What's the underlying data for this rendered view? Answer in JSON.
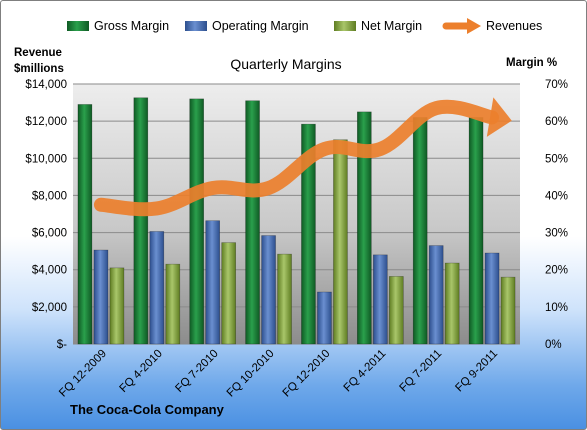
{
  "chart_data": {
    "type": "bar",
    "title": "Quarterly Margins",
    "company": "The Coca-Cola Company",
    "y_left_label_line1": "Revenue",
    "y_left_label_line2": "$millions",
    "y_right_label": "Margin %",
    "categories": [
      "FQ 12-2009",
      "FQ 4-2010",
      "FQ 7-2010",
      "FQ 10-2010",
      "FQ 12-2010",
      "FQ 4-2011",
      "FQ 7-2011",
      "FQ 9-2011"
    ],
    "y_left_ticks": [
      "$-",
      "$2,000",
      "$4,000",
      "$6,000",
      "$8,000",
      "$10,000",
      "$12,000",
      "$14,000"
    ],
    "y_right_ticks": [
      "0%",
      "10%",
      "20%",
      "30%",
      "40%",
      "50%",
      "60%",
      "70%"
    ],
    "y_left_lim": [
      0,
      14000
    ],
    "y_right_lim": [
      0,
      70
    ],
    "series": [
      {
        "name": "Gross Margin",
        "axis": "right",
        "type": "bar",
        "values": [
          64.5,
          66.3,
          66.0,
          65.5,
          59.2,
          62.5,
          61.0,
          61.0
        ]
      },
      {
        "name": "Operating Margin",
        "axis": "right",
        "type": "bar",
        "values": [
          25.3,
          30.3,
          33.2,
          29.2,
          14.0,
          24.0,
          26.5,
          24.5
        ]
      },
      {
        "name": "Net Margin",
        "axis": "right",
        "type": "bar",
        "values": [
          20.5,
          21.5,
          27.3,
          24.2,
          55.0,
          18.2,
          21.8,
          18.0
        ]
      },
      {
        "name": "Revenues",
        "axis": "left",
        "type": "line",
        "values": [
          7500,
          7300,
          8400,
          8400,
          10500,
          10500,
          12700,
          12200
        ]
      }
    ],
    "colors": {
      "gross": "#1e8a3e",
      "operating": "#4a72b8",
      "net": "#8fb04a",
      "revenues": "#ec7f2c",
      "plot_fill": "#d6d6d6"
    },
    "grid": true,
    "legend": "top"
  }
}
